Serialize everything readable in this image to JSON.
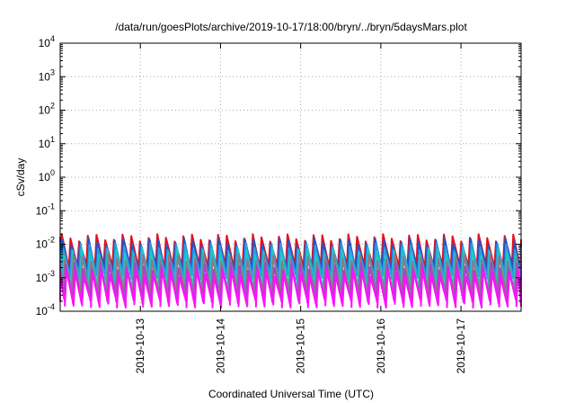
{
  "chart_data": {
    "type": "line",
    "title": "/data/run/goesPlots/archive/2019-10-17/18:00/bryn/../bryn/5daysMars.plot",
    "xlabel": "Coordinated Universal Time (UTC)",
    "ylabel": "cSv/day",
    "xlim": [
      "2019-10-12 00:00",
      "2019-10-17 18:00"
    ],
    "ylim": [
      0.0001,
      10000
    ],
    "yscale": "log",
    "grid": true,
    "x_ticks": [
      "2019-10-13",
      "2019-10-14",
      "2019-10-15",
      "2019-10-16",
      "2019-10-17"
    ],
    "y_ticks": [
      {
        "base": "10",
        "exp": "4"
      },
      {
        "base": "10",
        "exp": "3"
      },
      {
        "base": "10",
        "exp": "2"
      },
      {
        "base": "10",
        "exp": "1"
      },
      {
        "base": "10",
        "exp": "0"
      },
      {
        "base": "10",
        "exp": "-1"
      },
      {
        "base": "10",
        "exp": "-2"
      },
      {
        "base": "10",
        "exp": "-3"
      },
      {
        "base": "10",
        "exp": "-4"
      }
    ],
    "sawtooth_period_hours": 2.6,
    "series": [
      {
        "color": "#e8101a",
        "peak": 0.016,
        "trough": 0.0022
      },
      {
        "color": "#2255cc",
        "peak": 0.012,
        "trough": 0.0016
      },
      {
        "color": "#2a9de0",
        "peak": 0.0085,
        "trough": 0.0011
      },
      {
        "color": "#1fc8c0",
        "peak": 0.006,
        "trough": 0.0005
      },
      {
        "color": "#8a7a8a",
        "peak": 0.004,
        "trough": 0.00035
      },
      {
        "color": "#b040c8",
        "peak": 0.0022,
        "trough": 0.00022
      },
      {
        "color": "#ff10ff",
        "peak": 0.0014,
        "trough": 0.00016
      }
    ]
  }
}
